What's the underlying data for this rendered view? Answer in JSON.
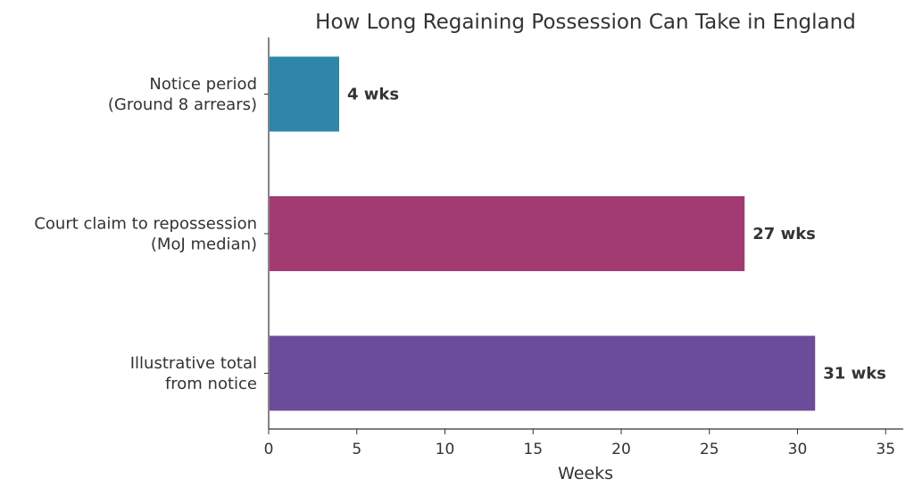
{
  "chart_data": {
    "type": "bar",
    "orientation": "horizontal",
    "title": "How Long Regaining Possession Can Take in England",
    "xlabel": "Weeks",
    "ylabel": "",
    "xlim": [
      0,
      36
    ],
    "xticks": [
      0,
      5,
      10,
      15,
      20,
      25,
      30,
      35
    ],
    "grid": false,
    "categories": [
      [
        "Notice period",
        "(Ground 8 arrears)"
      ],
      [
        "Court claim to repossession",
        "(MoJ median)"
      ],
      [
        "Illustrative total",
        "from notice"
      ]
    ],
    "values": [
      4,
      27,
      31
    ],
    "data_labels": [
      "4 wks",
      "27 wks",
      "31 wks"
    ],
    "colors": [
      "#2e86ab",
      "#a23b72",
      "#6b4c9a"
    ]
  }
}
